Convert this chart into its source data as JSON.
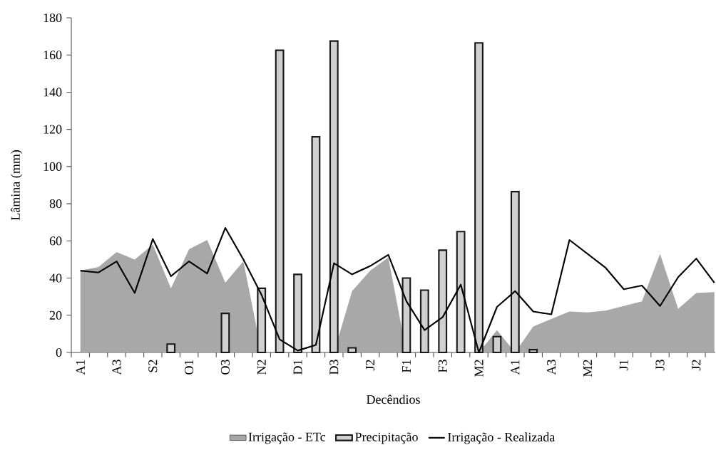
{
  "chart_data": {
    "type": "bar",
    "xlabel": "Decêndios",
    "ylabel": "Lâmina (mm)",
    "categories": [
      "A1",
      null,
      "A3",
      null,
      "S2",
      null,
      "O1",
      null,
      "O3",
      null,
      "N2",
      null,
      "D1",
      null,
      "D3",
      null,
      "J2",
      null,
      "F1",
      null,
      "F3",
      null,
      "M2",
      null,
      "A1",
      null,
      "A3",
      null,
      "M2",
      null,
      "J1",
      null,
      "J3",
      null,
      "J2",
      null
    ],
    "series": [
      {
        "name": "Irrigação - ETc",
        "type": "area",
        "color": "#a8a8a8",
        "values": [
          44,
          46,
          54,
          50,
          58,
          34.5,
          55.5,
          60.5,
          37.5,
          49,
          0,
          0,
          0,
          0,
          0,
          33,
          44,
          51,
          0,
          0,
          0,
          0,
          0,
          12,
          0,
          14,
          18,
          22,
          21.5,
          22.5,
          25,
          27.5,
          53,
          23.5,
          32,
          32.5
        ]
      },
      {
        "name": "Precipitação",
        "color": "#d0d0d0",
        "values": [
          null,
          null,
          null,
          null,
          null,
          4.5,
          null,
          null,
          21,
          null,
          34.5,
          162.5,
          42,
          116,
          167.5,
          2.5,
          null,
          null,
          40,
          33.5,
          55,
          65,
          166.5,
          8.5,
          86.5,
          1.5,
          null,
          null,
          null,
          null,
          null,
          null,
          null,
          null,
          null,
          null
        ]
      },
      {
        "name": "Irrigação - Realizada",
        "type": "line",
        "color": "#000000",
        "values": [
          44,
          43,
          49,
          32,
          61,
          41,
          49,
          42.5,
          67,
          50,
          31,
          7,
          1,
          4,
          48,
          42,
          46.5,
          52.5,
          27.5,
          12,
          19,
          36.5,
          0,
          24.5,
          33,
          22,
          20.5,
          60.5,
          53,
          45.5,
          34,
          36,
          25,
          40.5,
          50.5,
          37.5
        ]
      }
    ],
    "ylim": [
      0,
      180
    ],
    "yticks": [
      0,
      20,
      40,
      60,
      80,
      100,
      120,
      140,
      160,
      180
    ],
    "legend": "bottom"
  }
}
